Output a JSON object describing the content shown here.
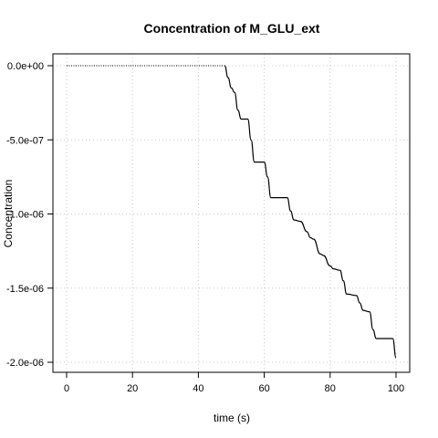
{
  "chart_data": {
    "type": "line",
    "title": "Concentration of M_GLU_ext",
    "xlabel": "time (s)",
    "ylabel": "Concentration",
    "xlim": [
      0,
      100
    ],
    "ylim": [
      -2e-06,
      0.0
    ],
    "x_ticks": [
      0,
      20,
      40,
      60,
      80,
      100
    ],
    "x_tick_labels": [
      "0",
      "20",
      "40",
      "60",
      "80",
      "100"
    ],
    "y_ticks": [
      0.0,
      -5e-07,
      -1e-06,
      -1.5e-06,
      -2e-06
    ],
    "y_tick_labels": [
      "0.0e+00",
      "-5.0e-07",
      "-1.0e-06",
      "-1.5e-06",
      "-2.0e-06"
    ],
    "grid": true,
    "series": [
      {
        "color": "#000000",
        "points": [
          {
            "x": 0,
            "y": 0.0,
            "style": "dotted"
          },
          {
            "x": 48,
            "y": 0.0,
            "style": "dotted"
          },
          {
            "x": 49,
            "y": -8e-08
          },
          {
            "x": 50,
            "y": -1.5e-07
          },
          {
            "x": 51,
            "y": -1.8e-07
          },
          {
            "x": 52,
            "y": -3e-07
          },
          {
            "x": 53,
            "y": -3.6e-07
          },
          {
            "x": 55,
            "y": -3.6e-07
          },
          {
            "x": 56,
            "y": -5e-07
          },
          {
            "x": 57,
            "y": -6.5e-07
          },
          {
            "x": 60,
            "y": -6.5e-07
          },
          {
            "x": 61,
            "y": -7.5e-07
          },
          {
            "x": 62,
            "y": -8.9e-07
          },
          {
            "x": 67,
            "y": -8.9e-07
          },
          {
            "x": 68,
            "y": -9.8e-07
          },
          {
            "x": 69,
            "y": -1.04e-06
          },
          {
            "x": 71,
            "y": -1.05e-06
          },
          {
            "x": 73,
            "y": -1.12e-06
          },
          {
            "x": 74,
            "y": -1.16e-06
          },
          {
            "x": 75,
            "y": -1.17e-06
          },
          {
            "x": 77,
            "y": -1.27e-06
          },
          {
            "x": 78,
            "y": -1.28e-06
          },
          {
            "x": 80,
            "y": -1.35e-06
          },
          {
            "x": 81,
            "y": -1.37e-06
          },
          {
            "x": 83,
            "y": -1.38e-06
          },
          {
            "x": 84,
            "y": -1.45e-06
          },
          {
            "x": 85,
            "y": -1.54e-06
          },
          {
            "x": 88,
            "y": -1.55e-06
          },
          {
            "x": 89,
            "y": -1.6e-06
          },
          {
            "x": 90,
            "y": -1.65e-06
          },
          {
            "x": 92,
            "y": -1.66e-06
          },
          {
            "x": 93,
            "y": -1.78e-06
          },
          {
            "x": 94,
            "y": -1.84e-06
          },
          {
            "x": 99,
            "y": -1.84e-06
          },
          {
            "x": 100,
            "y": -1.97e-06
          }
        ]
      }
    ]
  }
}
